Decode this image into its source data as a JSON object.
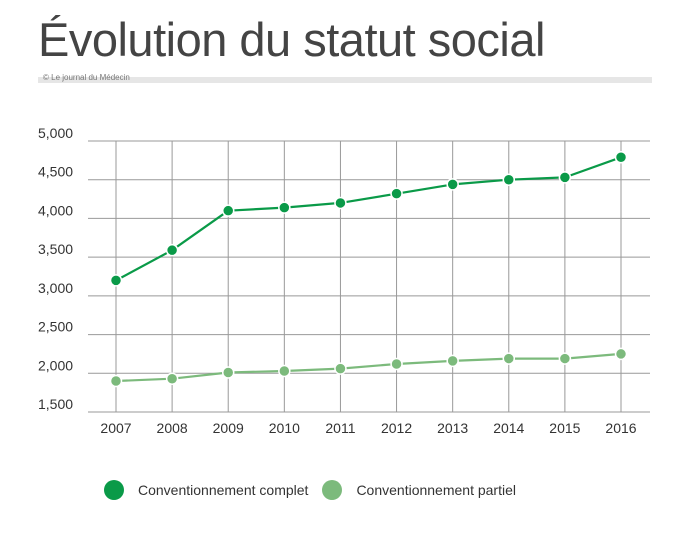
{
  "title": "Évolution du statut social",
  "credit": "© Le journal du Médecin",
  "colors": {
    "complet": "#0a9a48",
    "partiel": "#7cba7c",
    "grid": "#999999"
  },
  "chart_data": {
    "type": "line",
    "title": "Évolution du statut social",
    "xlabel": "",
    "ylabel": "",
    "ylim": [
      1500,
      5000
    ],
    "yticks": [
      1500,
      2000,
      2500,
      3000,
      3500,
      4000,
      4500,
      5000
    ],
    "ytick_labels": [
      "1,500",
      "2,000",
      "2,500",
      "3,000",
      "3,500",
      "4,000",
      "4,500",
      "5,000"
    ],
    "x": [
      "2007",
      "2008",
      "2009",
      "2010",
      "2011",
      "2012",
      "2013",
      "2014",
      "2015",
      "2016"
    ],
    "grid": true,
    "legend_position": "bottom",
    "series": [
      {
        "name": "Conventionnement complet",
        "color": "#0a9a48",
        "values": [
          3200,
          3590,
          4100,
          4140,
          4200,
          4320,
          4440,
          4500,
          4530,
          4790
        ]
      },
      {
        "name": "Conventionnement partiel",
        "color": "#7cba7c",
        "values": [
          1900,
          1930,
          2010,
          2030,
          2060,
          2120,
          2160,
          2190,
          2190,
          2250
        ]
      }
    ]
  }
}
